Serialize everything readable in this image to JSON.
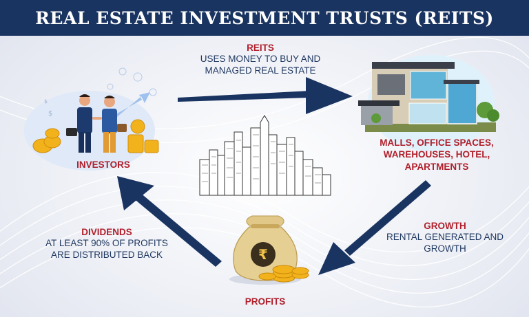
{
  "header": {
    "title": "REAL ESTATE INVESTMENT TRUSTS (REITS)"
  },
  "reits": {
    "title": "REITS",
    "line1": "USES MONEY TO BUY AND",
    "line2": "MANAGED REAL ESTATE"
  },
  "investors": {
    "label": "INVESTORS"
  },
  "properties": {
    "line1": "MALLS, OFFICE SPACES,",
    "line2": "WAREHOUSES, HOTEL,",
    "line3": "APARTMENTS"
  },
  "growth": {
    "title": "GROWTH",
    "line1": "RENTAL GENERATED AND",
    "line2": "GROWTH"
  },
  "dividends": {
    "title": "DIVIDENDS",
    "line1": "AT LEAST 90% OF PROFITS",
    "line2": "ARE DISTRIBUTED BACK"
  },
  "profits": {
    "label": "PROFITS",
    "symbol": "₹"
  },
  "icons": {
    "dollar": "$"
  },
  "colors": {
    "navy": "#1a3461",
    "red": "#b01e2a",
    "gold": "#f2b21c"
  }
}
